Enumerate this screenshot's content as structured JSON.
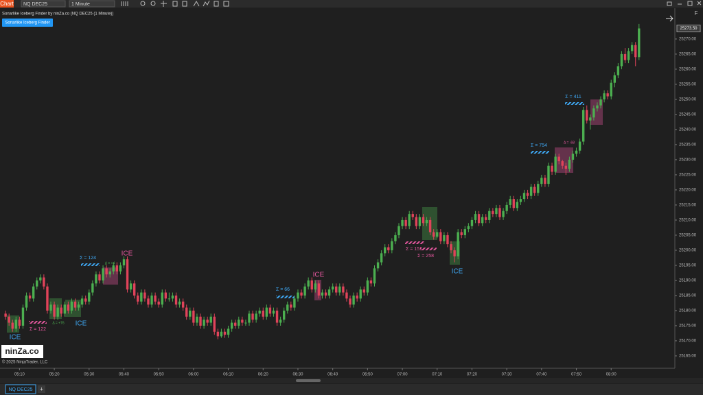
{
  "toolbar": {
    "tab": "Chart",
    "instrument": "NQ DEC25",
    "interval": "1 Minute",
    "f_button": "F"
  },
  "indicator": {
    "title": "Sonarlike Iceberg Finder by ninZa.co (NQ DEC25 (1 Minute))",
    "button": "Sonarlike Iceberg Finder"
  },
  "logo": {
    "text": "ninZa.co",
    "copyright": "© 2025 NinjaTrader, LLC"
  },
  "footer": {
    "tab": "NQ DEC25",
    "add": "+"
  },
  "annotations": [
    {
      "text": "ICE",
      "color": "#3fa9f5"
    },
    {
      "text": "Σ = 122",
      "color": "#e4579e"
    },
    {
      "text": "Δ = +76",
      "color": "#4caf50"
    },
    {
      "text": "ICE",
      "color": "#3fa9f5"
    },
    {
      "text": "Σ = 124",
      "color": "#3fa9f5"
    },
    {
      "text": "ICE",
      "color": "#e4579e"
    },
    {
      "text": "Δ = +4",
      "color": "#4caf50"
    },
    {
      "text": "Σ = 66",
      "color": "#3fa9f5"
    },
    {
      "text": "ICE",
      "color": "#e4579e"
    },
    {
      "text": "Σ = 151",
      "color": "#e4579e"
    },
    {
      "text": "Σ = 258",
      "color": "#e4579e"
    },
    {
      "text": "ICE",
      "color": "#3fa9f5"
    },
    {
      "text": "Σ = 754",
      "color": "#3fa9f5"
    },
    {
      "text": "Δ = -68",
      "color": "#e4579e"
    },
    {
      "text": "Σ = 411",
      "color": "#3fa9f5"
    }
  ],
  "chart_data": {
    "type": "candlestick",
    "up_color": "#4caf50",
    "down_color": "#e0435a",
    "xlim": [
      -1.6,
      192.1
    ],
    "ylim": [
      25160.9,
      25280.2
    ],
    "xticks": [
      {
        "value": 4,
        "label": "05:10"
      },
      {
        "value": 14,
        "label": "05:20"
      },
      {
        "value": 24,
        "label": "05:30"
      },
      {
        "value": 34,
        "label": "05:40"
      },
      {
        "value": 44,
        "label": "05:50"
      },
      {
        "value": 54,
        "label": "06:00"
      },
      {
        "value": 64,
        "label": "06:10"
      },
      {
        "value": 74,
        "label": "06:20"
      },
      {
        "value": 84,
        "label": "06:30"
      },
      {
        "value": 94,
        "label": "06:40"
      },
      {
        "value": 104,
        "label": "06:50"
      },
      {
        "value": 114,
        "label": "07:00"
      },
      {
        "value": 124,
        "label": "07:10"
      },
      {
        "value": 134,
        "label": "07:20"
      },
      {
        "value": 144,
        "label": "07:30"
      },
      {
        "value": 154,
        "label": "07:40"
      },
      {
        "value": 164,
        "label": "07:50"
      },
      {
        "value": 174,
        "label": "08:00"
      }
    ],
    "yticks": [
      {
        "value": 25165,
        "label": "25165.00"
      },
      {
        "value": 25170,
        "label": "25170.00"
      },
      {
        "value": 25175,
        "label": "25175.00"
      },
      {
        "value": 25180,
        "label": "25180.00"
      },
      {
        "value": 25185,
        "label": "25185.00"
      },
      {
        "value": 25190,
        "label": "25190.00"
      },
      {
        "value": 25195,
        "label": "25195.00"
      },
      {
        "value": 25200,
        "label": "25200.00"
      },
      {
        "value": 25205,
        "label": "25205.00"
      },
      {
        "value": 25210,
        "label": "25210.00"
      },
      {
        "value": 25215,
        "label": "25215.00"
      },
      {
        "value": 25220,
        "label": "25220.00"
      },
      {
        "value": 25225,
        "label": "25225.00"
      },
      {
        "value": 25230,
        "label": "25230.00"
      },
      {
        "value": 25235,
        "label": "25235.00"
      },
      {
        "value": 25240,
        "label": "25240.00"
      },
      {
        "value": 25245,
        "label": "25245.00"
      },
      {
        "value": 25250,
        "label": "25250.00"
      },
      {
        "value": 25255,
        "label": "25255.00"
      },
      {
        "value": 25260,
        "label": "25260.00"
      },
      {
        "value": 25265,
        "label": "25265.00"
      },
      {
        "value": 25270,
        "label": "25270.00"
      }
    ],
    "last_price": {
      "value": 25273.5,
      "label": "25273.50"
    },
    "candles": [
      [
        25179,
        25180,
        25177,
        25178
      ],
      [
        25178,
        25179,
        25175,
        25176
      ],
      [
        25176,
        25177,
        25173,
        25174
      ],
      [
        25174,
        25178,
        25173,
        25177
      ],
      [
        25177,
        25178,
        25174,
        25175
      ],
      [
        25175,
        25182,
        25174,
        25181
      ],
      [
        25181,
        25186,
        25180,
        25185
      ],
      [
        25185,
        25186,
        25183,
        25184
      ],
      [
        25184,
        25189,
        25183,
        25188
      ],
      [
        25188,
        25191,
        25187,
        25190
      ],
      [
        25190,
        25192,
        25189,
        25191
      ],
      [
        25191,
        25192,
        25187,
        25188
      ],
      [
        25188,
        25189,
        25179,
        25180
      ],
      [
        25180,
        25183,
        25179,
        25182
      ],
      [
        25182,
        25183,
        25177,
        25178
      ],
      [
        25178,
        25182,
        25177,
        25181
      ],
      [
        25181,
        25182,
        25178,
        25179
      ],
      [
        25179,
        25183,
        25178,
        25182
      ],
      [
        25182,
        25183,
        25179,
        25180
      ],
      [
        25180,
        25184,
        25179,
        25183
      ],
      [
        25183,
        25184,
        25180,
        25181
      ],
      [
        25181,
        25183,
        25180,
        25182
      ],
      [
        25182,
        25185,
        25181,
        25184
      ],
      [
        25184,
        25185,
        25182,
        25183
      ],
      [
        25183,
        25187,
        25182,
        25186
      ],
      [
        25186,
        25190,
        25185,
        25189
      ],
      [
        25189,
        25193,
        25188,
        25192
      ],
      [
        25192,
        25193,
        25189,
        25190
      ],
      [
        25190,
        25195,
        25189,
        25194
      ],
      [
        25194,
        25195,
        25191,
        25192
      ],
      [
        25192,
        25194,
        25191,
        25193
      ],
      [
        25193,
        25196,
        25192,
        25195
      ],
      [
        25195,
        25196,
        25192,
        25193
      ],
      [
        25193,
        25196,
        25192,
        25195
      ],
      [
        25195,
        25198,
        25194,
        25197
      ],
      [
        25197,
        25198,
        25186,
        25187
      ],
      [
        25187,
        25190,
        25186,
        25189
      ],
      [
        25189,
        25190,
        25184,
        25185
      ],
      [
        25185,
        25186,
        25182,
        25183
      ],
      [
        25183,
        25187,
        25182,
        25186
      ],
      [
        25186,
        25187,
        25183,
        25184
      ],
      [
        25184,
        25185,
        25181,
        25182
      ],
      [
        25182,
        25186,
        25181,
        25185
      ],
      [
        25185,
        25186,
        25182,
        25183
      ],
      [
        25183,
        25184,
        25181,
        25182
      ],
      [
        25182,
        25187,
        25181,
        25186
      ],
      [
        25186,
        25187,
        25183,
        25184
      ],
      [
        25184,
        25186,
        25183,
        25184
      ],
      [
        25184,
        25186,
        25183,
        25185
      ],
      [
        25185,
        25186,
        25181,
        25182
      ],
      [
        25182,
        25184,
        25181,
        25183
      ],
      [
        25183,
        25184,
        25180,
        25181
      ],
      [
        25181,
        25182,
        25177,
        25178
      ],
      [
        25178,
        25181,
        25177,
        25180
      ],
      [
        25180,
        25181,
        25175,
        25176
      ],
      [
        25176,
        25179,
        25175,
        25178
      ],
      [
        25178,
        25179,
        25174,
        25175
      ],
      [
        25175,
        25178,
        25174,
        25177
      ],
      [
        25177,
        25178,
        25175,
        25176
      ],
      [
        25176,
        25179,
        25175,
        25178
      ],
      [
        25178,
        25179,
        25172,
        25173
      ],
      [
        25173,
        25174,
        25170.5,
        25171.5
      ],
      [
        25171.5,
        25174,
        25171,
        25173
      ],
      [
        25173,
        25174,
        25171,
        25172
      ],
      [
        25172,
        25175,
        25171,
        25174
      ],
      [
        25174,
        25177,
        25173,
        25176
      ],
      [
        25176,
        25177,
        25174,
        25175
      ],
      [
        25175,
        25178,
        25174,
        25177
      ],
      [
        25177,
        25178,
        25175,
        25176
      ],
      [
        25176,
        25177,
        25175,
        25176
      ],
      [
        25176,
        25180,
        25175,
        25179
      ],
      [
        25179,
        25180,
        25176,
        25177
      ],
      [
        25177,
        25180,
        25176,
        25179
      ],
      [
        25179,
        25181,
        25178,
        25180
      ],
      [
        25180,
        25181,
        25177,
        25178
      ],
      [
        25178,
        25182,
        25177,
        25181
      ],
      [
        25181,
        25182,
        25178,
        25179
      ],
      [
        25179,
        25181,
        25178,
        25180
      ],
      [
        25180,
        25181,
        25175,
        25176
      ],
      [
        25176,
        25178,
        25175,
        25177
      ],
      [
        25177,
        25181,
        25176,
        25180
      ],
      [
        25180,
        25183,
        25179,
        25182
      ],
      [
        25182,
        25183,
        25180,
        25181
      ],
      [
        25181,
        25185,
        25180,
        25184
      ],
      [
        25184,
        25187,
        25183,
        25186
      ],
      [
        25186,
        25187,
        25184,
        25185
      ],
      [
        25185,
        25189,
        25184,
        25188
      ],
      [
        25188,
        25191,
        25187,
        25190
      ],
      [
        25190,
        25191,
        25186,
        25187
      ],
      [
        25187,
        25190,
        25186,
        25189
      ],
      [
        25189,
        25190,
        25184,
        25185
      ],
      [
        25185,
        25187,
        25184,
        25186
      ],
      [
        25186,
        25187,
        25184,
        25185
      ],
      [
        25185,
        25188,
        25184,
        25187
      ],
      [
        25187,
        25189,
        25186,
        25188
      ],
      [
        25188,
        25189,
        25185,
        25186
      ],
      [
        25186,
        25189,
        25185,
        25188
      ],
      [
        25188,
        25189,
        25185,
        25186
      ],
      [
        25186,
        25187,
        25183,
        25184
      ],
      [
        25184,
        25185,
        25181,
        25182
      ],
      [
        25182,
        25186,
        25181,
        25185
      ],
      [
        25185,
        25186,
        25183,
        25184
      ],
      [
        25184,
        25188,
        25183,
        25187
      ],
      [
        25187,
        25188,
        25185,
        25186
      ],
      [
        25186,
        25191,
        25185,
        25190
      ],
      [
        25190,
        25191,
        25188,
        25189
      ],
      [
        25189,
        25195,
        25188,
        25194
      ],
      [
        25194,
        25197,
        25193,
        25196
      ],
      [
        25196,
        25200,
        25195,
        25199
      ],
      [
        25199,
        25202,
        25198,
        25201
      ],
      [
        25201,
        25202,
        25199,
        25200
      ],
      [
        25200,
        25204,
        25199,
        25203
      ],
      [
        25203,
        25206,
        25202,
        25205
      ],
      [
        25205,
        25209,
        25204,
        25208
      ],
      [
        25208,
        25211,
        25207,
        25210
      ],
      [
        25210,
        25211,
        25207,
        25208
      ],
      [
        25208,
        25213,
        25207,
        25212
      ],
      [
        25212,
        25213,
        25210,
        25211
      ],
      [
        25211,
        25212,
        25207,
        25208
      ],
      [
        25208,
        25212,
        25207,
        25211
      ],
      [
        25211,
        25212,
        25208,
        25209
      ],
      [
        25209,
        25211,
        25208,
        25210
      ],
      [
        25210,
        25211,
        25205,
        25206
      ],
      [
        25206,
        25207,
        25203.5,
        25204.5
      ],
      [
        25204.5,
        25207,
        25204,
        25206
      ],
      [
        25206,
        25207,
        25202,
        25203
      ],
      [
        25203,
        25206,
        25202,
        25205
      ],
      [
        25205,
        25206,
        25201,
        25202
      ],
      [
        25202,
        25203,
        25199,
        25200
      ],
      [
        25200,
        25201,
        25196,
        25198
      ],
      [
        25198,
        25207,
        25197,
        25206
      ],
      [
        25206,
        25207,
        25204,
        25205
      ],
      [
        25205,
        25208,
        25204,
        25207
      ],
      [
        25207,
        25209,
        25206,
        25208
      ],
      [
        25208,
        25211,
        25207,
        25210
      ],
      [
        25210,
        25213,
        25209,
        25212
      ],
      [
        25212,
        25213,
        25208,
        25209
      ],
      [
        25209,
        25212,
        25208,
        25211
      ],
      [
        25211,
        25212,
        25209,
        25210
      ],
      [
        25210,
        25214,
        25209,
        25213
      ],
      [
        25213,
        25214,
        25211,
        25212
      ],
      [
        25212,
        25215,
        25211,
        25214
      ],
      [
        25214,
        25215,
        25210,
        25211
      ],
      [
        25211,
        25214,
        25210,
        25213
      ],
      [
        25213,
        25216,
        25212,
        25215
      ],
      [
        25215,
        25218,
        25214,
        25217
      ],
      [
        25217,
        25218,
        25213,
        25214
      ],
      [
        25214,
        25217,
        25213,
        25216
      ],
      [
        25216,
        25218,
        25215,
        25217
      ],
      [
        25217,
        25220,
        25216,
        25219
      ],
      [
        25219,
        25220,
        25217,
        25218
      ],
      [
        25218,
        25222,
        25217,
        25221
      ],
      [
        25221,
        25222,
        25218,
        25219
      ],
      [
        25219,
        25223,
        25218,
        25222
      ],
      [
        25222,
        25225,
        25221,
        25224
      ],
      [
        25224,
        25225,
        25221,
        25222
      ],
      [
        25222,
        25229,
        25221,
        25228
      ],
      [
        25228,
        25229,
        25225,
        25226
      ],
      [
        25226,
        25232,
        25225,
        25231
      ],
      [
        25231,
        25232,
        25228.5,
        25229.5
      ],
      [
        25229.5,
        25230,
        25227,
        25228
      ],
      [
        25228,
        25229,
        25225,
        25227
      ],
      [
        25227,
        25231,
        25226,
        25230
      ],
      [
        25230,
        25233,
        25229,
        25232
      ],
      [
        25232,
        25234,
        25231,
        25233
      ],
      [
        25233,
        25237,
        25232,
        25236
      ],
      [
        25236,
        25247.5,
        25235,
        25246.5
      ],
      [
        25246.5,
        25248,
        25242,
        25243
      ],
      [
        25243,
        25245,
        25240,
        25244
      ],
      [
        25244,
        25248,
        25243,
        25247
      ],
      [
        25247,
        25249,
        25246,
        25248
      ],
      [
        25248,
        25251,
        25247,
        25250
      ],
      [
        25250,
        25253,
        25249,
        25252
      ],
      [
        25252,
        25253,
        25250,
        25251
      ],
      [
        25251,
        25256.5,
        25250,
        25255.5
      ],
      [
        25255.5,
        25259,
        25254,
        25258
      ],
      [
        25258,
        25262,
        25257,
        25261
      ],
      [
        25261,
        25266,
        25260,
        25265
      ],
      [
        25265,
        25267,
        25262,
        25263
      ],
      [
        25263,
        25267,
        25262,
        25266
      ],
      [
        25266,
        25269,
        25265,
        25268
      ],
      [
        25268,
        25269,
        25261,
        25264
      ],
      [
        25264,
        25275,
        25263,
        25273.5
      ]
    ]
  }
}
